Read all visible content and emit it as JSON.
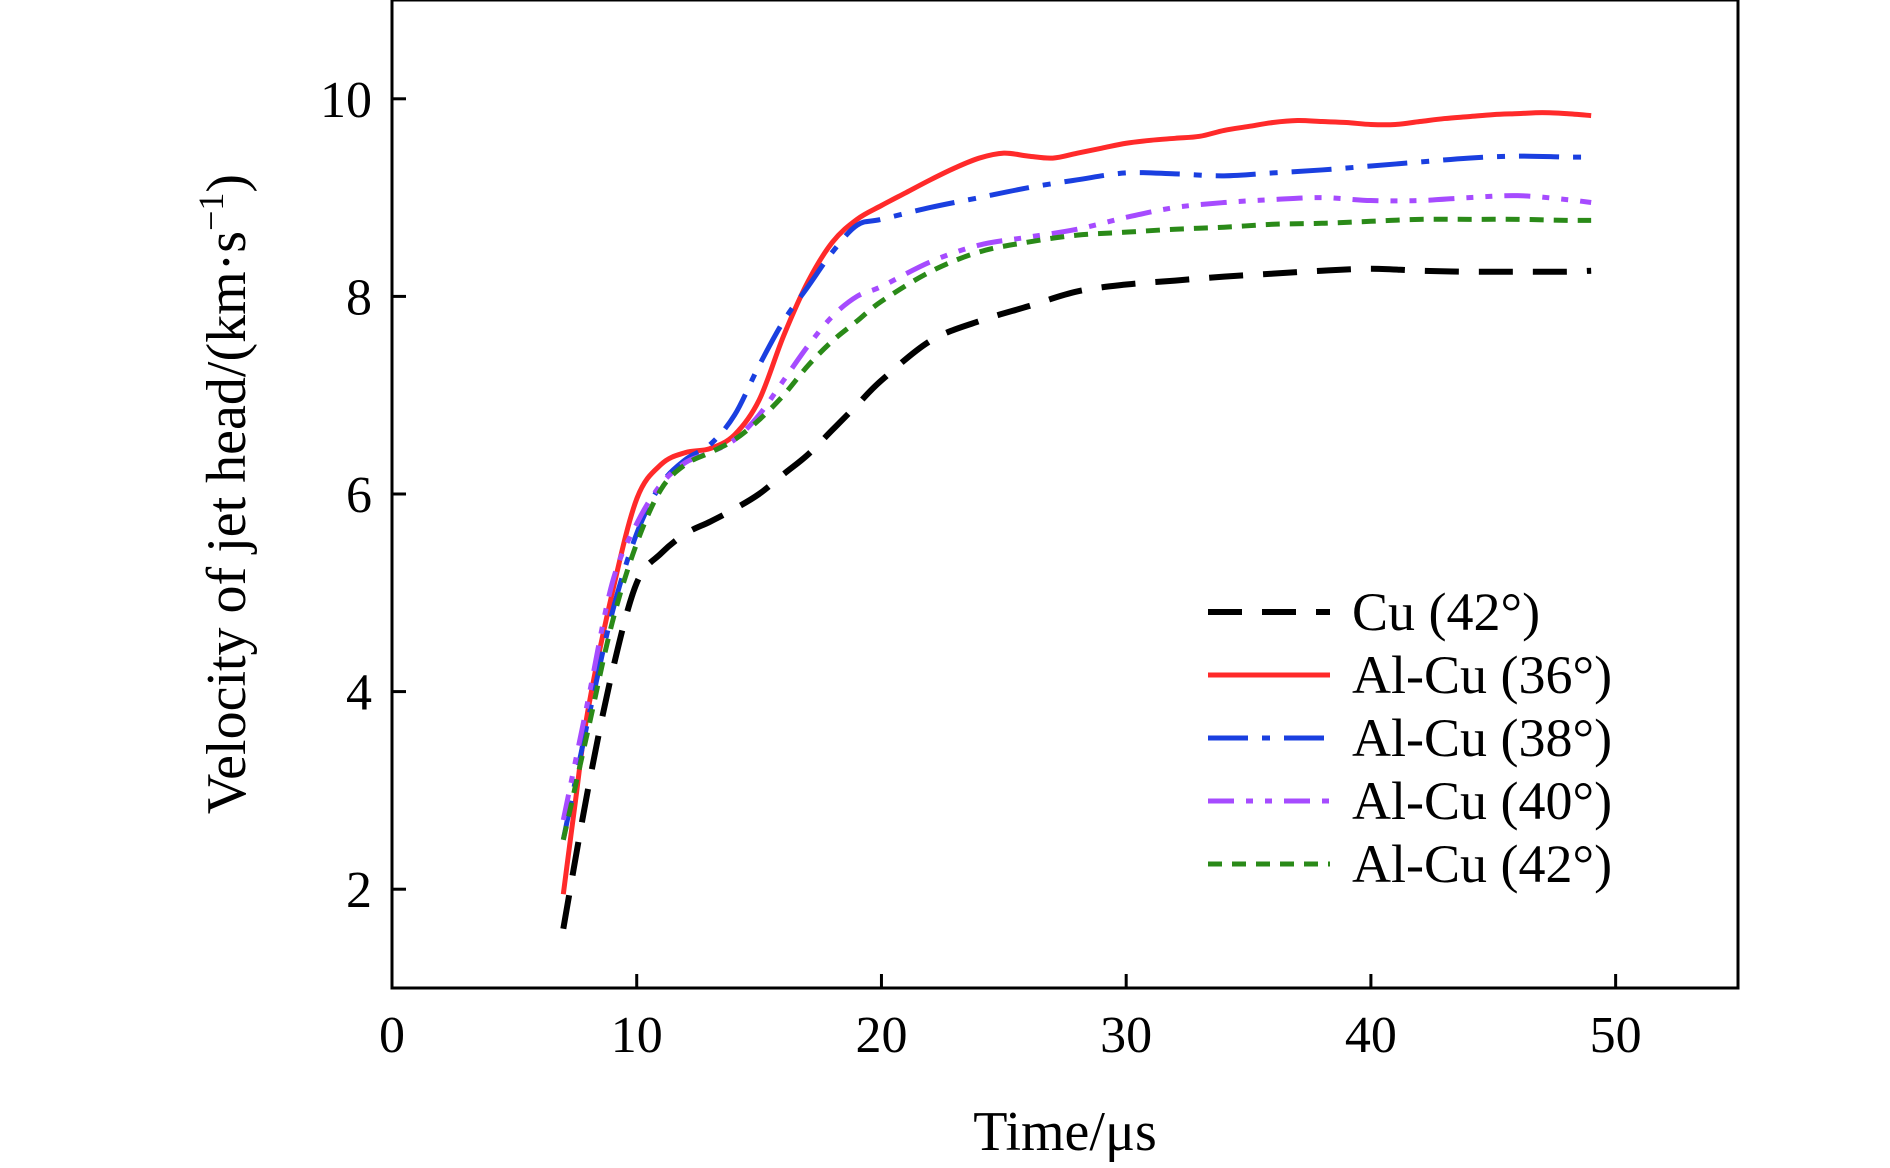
{
  "chart_data": {
    "type": "line",
    "title": "",
    "xlabel": "Time/μs",
    "ylabel": "Velocity of jet head/(km·s",
    "ylabel_superscript": "−1",
    "ylabel_suffix": ")",
    "xlim": [
      0,
      55
    ],
    "ylim": [
      1,
      11
    ],
    "xticks": [
      0,
      10,
      20,
      30,
      40,
      50
    ],
    "yticks": [
      2,
      4,
      6,
      8,
      10
    ],
    "xtick_labels": [
      "0",
      "10",
      "20",
      "30",
      "40",
      "50"
    ],
    "ytick_labels": [
      "2",
      "4",
      "6",
      "8",
      "10"
    ],
    "grid": false,
    "legend_position": "lower-right",
    "series": [
      {
        "name": "Cu (42°)",
        "color": "#000000",
        "style": "dashed",
        "x": [
          7,
          8,
          9,
          10,
          11,
          12,
          13,
          14,
          15,
          16,
          17,
          18,
          19,
          20,
          22,
          24,
          26,
          28,
          30,
          32,
          34,
          36,
          38,
          40,
          42,
          44,
          46,
          48,
          49
        ],
        "y": [
          1.6,
          3.0,
          4.2,
          5.1,
          5.4,
          5.6,
          5.72,
          5.85,
          6.0,
          6.2,
          6.4,
          6.65,
          6.9,
          7.15,
          7.55,
          7.75,
          7.9,
          8.05,
          8.12,
          8.16,
          8.2,
          8.23,
          8.26,
          8.28,
          8.26,
          8.25,
          8.25,
          8.25,
          8.26
        ]
      },
      {
        "name": "Al-Cu (36°)",
        "color": "#ff2a2a",
        "style": "solid",
        "x": [
          7,
          7.5,
          8,
          9,
          10,
          11,
          12,
          13,
          14,
          15,
          16,
          17,
          18,
          19,
          20,
          21,
          22,
          23,
          24,
          25,
          26,
          27,
          28,
          29,
          30,
          31,
          32,
          33,
          34,
          35,
          36,
          37,
          38,
          39,
          40,
          41,
          42,
          43,
          44,
          45,
          46,
          47,
          48,
          49
        ],
        "y": [
          1.95,
          2.9,
          3.8,
          5.0,
          5.95,
          6.3,
          6.42,
          6.46,
          6.6,
          6.95,
          7.6,
          8.15,
          8.55,
          8.78,
          8.92,
          9.05,
          9.18,
          9.3,
          9.4,
          9.45,
          9.42,
          9.4,
          9.45,
          9.5,
          9.55,
          9.58,
          9.6,
          9.62,
          9.68,
          9.72,
          9.76,
          9.78,
          9.77,
          9.76,
          9.74,
          9.74,
          9.77,
          9.8,
          9.82,
          9.84,
          9.85,
          9.86,
          9.85,
          9.83
        ]
      },
      {
        "name": "Al-Cu (38°)",
        "color": "#1a3fe0",
        "style": "dashdot",
        "x": [
          7,
          8,
          9,
          10,
          11,
          12,
          13,
          14,
          15,
          16,
          17,
          18,
          19,
          20,
          22,
          24,
          26,
          28,
          30,
          32,
          34,
          36,
          38,
          40,
          42,
          44,
          46,
          48,
          49
        ],
        "y": [
          2.5,
          3.7,
          4.8,
          5.6,
          6.1,
          6.35,
          6.5,
          6.8,
          7.3,
          7.75,
          8.1,
          8.45,
          8.72,
          8.78,
          8.9,
          9.0,
          9.1,
          9.18,
          9.25,
          9.24,
          9.22,
          9.25,
          9.28,
          9.32,
          9.36,
          9.4,
          9.42,
          9.41,
          9.41
        ]
      },
      {
        "name": "Al-Cu (40°)",
        "color": "#a64bff",
        "style": "dashdotdot",
        "x": [
          7,
          8,
          9,
          10,
          11,
          12,
          13,
          14,
          15,
          16,
          17,
          18,
          19,
          20,
          22,
          24,
          26,
          28,
          30,
          32,
          34,
          36,
          38,
          40,
          42,
          44,
          46,
          48,
          49
        ],
        "y": [
          2.7,
          3.9,
          5.1,
          5.7,
          6.1,
          6.32,
          6.42,
          6.55,
          6.8,
          7.15,
          7.5,
          7.8,
          8.0,
          8.1,
          8.35,
          8.52,
          8.6,
          8.68,
          8.8,
          8.9,
          8.95,
          8.98,
          9.0,
          8.97,
          8.97,
          9.0,
          9.02,
          8.98,
          8.95
        ]
      },
      {
        "name": "Al-Cu (42°)",
        "color": "#2a8a18",
        "style": "dotted",
        "x": [
          7,
          8,
          9,
          10,
          11,
          12,
          13,
          14,
          15,
          16,
          17,
          18,
          19,
          20,
          22,
          24,
          26,
          28,
          30,
          32,
          34,
          36,
          38,
          40,
          42,
          44,
          46,
          48,
          49
        ],
        "y": [
          2.5,
          3.6,
          4.7,
          5.5,
          6.05,
          6.3,
          6.42,
          6.55,
          6.75,
          7.0,
          7.3,
          7.55,
          7.75,
          7.95,
          8.25,
          8.45,
          8.55,
          8.62,
          8.65,
          8.68,
          8.7,
          8.73,
          8.74,
          8.76,
          8.78,
          8.78,
          8.78,
          8.77,
          8.77
        ]
      }
    ]
  }
}
